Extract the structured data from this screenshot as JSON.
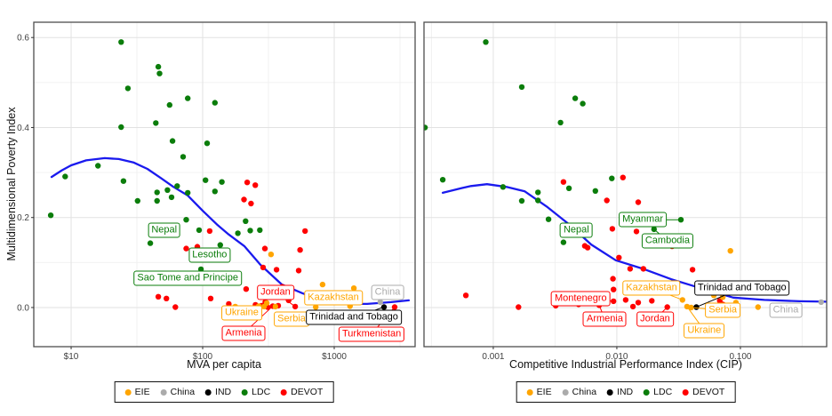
{
  "y_axis_title": "Multidimensional Poverty Index",
  "colors": {
    "EIE": "#FFA500",
    "China": "#ABABAB",
    "IND": "#000000",
    "LDC": "#0B7D0B",
    "DEVOT": "#FF0000",
    "trend": "#1A1AEE",
    "grid_major": "#E2E2E2",
    "grid_minor": "#F0F0F0",
    "panel_border": "#4D4D4D",
    "tick_text": "#404040"
  },
  "legend_items": [
    {
      "key": "EIE",
      "label": "EIE"
    },
    {
      "key": "China",
      "label": "China"
    },
    {
      "key": "IND",
      "label": "IND"
    },
    {
      "key": "LDC",
      "label": "LDC"
    },
    {
      "key": "DEVOT",
      "label": "DEVOT"
    }
  ],
  "chart_data": [
    {
      "type": "scatter",
      "xlabel": "MVA per capita",
      "ylabel": "Multidimensional Poverty Index",
      "x_scale": "log10",
      "grid": true,
      "legend_position": "bottom",
      "x_range": [
        5.2,
        4120
      ],
      "y_range": [
        -0.087,
        0.634
      ],
      "x_ticks": [
        {
          "v": 10,
          "label": "$10"
        },
        {
          "v": 100,
          "label": "$100"
        },
        {
          "v": 1000,
          "label": "$1000"
        }
      ],
      "x_minor": [
        31.6,
        316,
        3162
      ],
      "y_ticks": [
        {
          "v": 0.0,
          "label": "0.0"
        },
        {
          "v": 0.2,
          "label": "0.2"
        },
        {
          "v": 0.4,
          "label": "0.4"
        },
        {
          "v": 0.6,
          "label": "0.6"
        }
      ],
      "y_minor": [
        0.1,
        0.3,
        0.5
      ],
      "show_y_labels": true,
      "series": [
        {
          "name": "LDC",
          "points": [
            [
              24,
              0.59
            ],
            [
              46,
              0.535
            ],
            [
              47,
              0.52
            ],
            [
              27,
              0.487
            ],
            [
              77,
              0.465
            ],
            [
              56,
              0.45
            ],
            [
              124,
              0.455
            ],
            [
              44,
              0.41
            ],
            [
              24,
              0.401
            ],
            [
              59,
              0.37
            ],
            [
              108,
              0.365
            ],
            [
              71,
              0.335
            ],
            [
              16,
              0.315
            ],
            [
              9,
              0.291
            ],
            [
              25,
              0.281
            ],
            [
              105,
              0.283
            ],
            [
              140,
              0.279
            ],
            [
              45,
              0.256
            ],
            [
              54,
              0.261
            ],
            [
              64,
              0.27
            ],
            [
              77,
              0.255
            ],
            [
              32,
              0.237
            ],
            [
              45,
              0.237
            ],
            [
              58,
              0.245
            ],
            [
              124,
              0.258
            ],
            [
              7,
              0.205
            ],
            [
              75,
              0.195
            ],
            [
              94,
              0.172
            ],
            [
              40,
              0.143
            ],
            [
              136,
              0.139
            ],
            [
              185,
              0.165
            ],
            [
              230,
              0.171
            ],
            [
              272,
              0.172
            ],
            [
              212,
              0.192
            ],
            [
              97,
              0.085
            ]
          ]
        },
        {
          "name": "DEVOT",
          "points": [
            [
              218,
              0.278
            ],
            [
              251,
              0.272
            ],
            [
              206,
              0.24
            ],
            [
              233,
              0.231
            ],
            [
              600,
              0.17
            ],
            [
              113,
              0.17
            ],
            [
              550,
              0.128
            ],
            [
              75,
              0.131
            ],
            [
              91,
              0.135
            ],
            [
              297,
              0.131
            ],
            [
              288,
              0.089
            ],
            [
              364,
              0.084
            ],
            [
              537,
              0.082
            ],
            [
              403,
              0.046
            ],
            [
              214,
              0.041
            ],
            [
              307,
              0.032
            ],
            [
              46,
              0.024
            ],
            [
              53,
              0.02
            ],
            [
              62,
              0.001
            ],
            [
              115,
              0.02
            ],
            [
              158,
              0.008
            ],
            [
              252,
              0.006
            ],
            [
              280,
              0.004
            ],
            [
              299,
              0.012
            ],
            [
              312,
              0.001
            ],
            [
              341,
              0.003
            ],
            [
              375,
              0.004
            ],
            [
              450,
              0.016
            ],
            [
              505,
              0.002
            ],
            [
              2880,
              0.001
            ]
          ]
        },
        {
          "name": "EIE",
          "points": [
            [
              331,
              0.118
            ],
            [
              816,
              0.051
            ],
            [
              177,
              0.002
            ],
            [
              267,
              0.003
            ],
            [
              293,
              0.002
            ],
            [
              307,
              0.01
            ],
            [
              357,
              0.002
            ],
            [
              724,
              0.001
            ],
            [
              1410,
              0.043
            ],
            [
              1320,
              0.003
            ]
          ]
        },
        {
          "name": "China",
          "points": [
            [
              2240,
              0.012
            ]
          ]
        },
        {
          "name": "IND",
          "points": [
            [
              2390,
              0.001
            ]
          ]
        }
      ],
      "trend": [
        [
          7.1,
          0.29
        ],
        [
          8.5,
          0.305
        ],
        [
          10,
          0.316
        ],
        [
          13,
          0.327
        ],
        [
          18,
          0.332
        ],
        [
          23,
          0.33
        ],
        [
          30,
          0.322
        ],
        [
          38,
          0.308
        ],
        [
          48,
          0.288
        ],
        [
          60,
          0.268
        ],
        [
          77,
          0.249
        ],
        [
          100,
          0.215
        ],
        [
          130,
          0.183
        ],
        [
          155,
          0.164
        ],
        [
          208,
          0.136
        ],
        [
          275,
          0.095
        ],
        [
          400,
          0.051
        ],
        [
          571,
          0.032
        ],
        [
          870,
          0.012
        ],
        [
          1245,
          0.008
        ],
        [
          1780,
          0.008
        ],
        [
          2705,
          0.012
        ],
        [
          3690,
          0.016
        ]
      ],
      "annotations": [
        {
          "text": "Nepal",
          "group": "LDC",
          "at": [
            51,
            0.172
          ]
        },
        {
          "text": "Lesotho",
          "group": "LDC",
          "at": [
            113,
            0.116
          ]
        },
        {
          "text": "Sao Tome and Principe",
          "group": "LDC",
          "at": [
            77,
            0.065
          ]
        },
        {
          "text": "Ukraine",
          "group": "EIE",
          "at": [
            198,
            -0.012
          ]
        },
        {
          "text": "Serbia",
          "group": "EIE",
          "at": [
            474,
            -0.026
          ]
        },
        {
          "text": "Jordan",
          "group": "DEVOT",
          "at": [
            358,
            0.034
          ],
          "leader": [
            505,
            0.002
          ]
        },
        {
          "text": "Kazakhstan",
          "group": "EIE",
          "at": [
            985,
            0.022
          ]
        },
        {
          "text": "Armenia",
          "group": "DEVOT",
          "at": [
            205,
            -0.057
          ],
          "leader": [
            341,
            0.003
          ]
        },
        {
          "text": "China",
          "group": "China",
          "at": [
            2545,
            0.034
          ]
        },
        {
          "text": "Trinidad and Tobago",
          "group": "IND",
          "at": [
            1410,
            -0.022
          ],
          "leader": [
            2390,
            0.001
          ]
        },
        {
          "text": "Turkmenistan",
          "group": "DEVOT",
          "at": [
            1925,
            -0.059
          ],
          "leader": [
            2880,
            0.001
          ]
        }
      ]
    },
    {
      "type": "scatter",
      "xlabel": "Competitive Industrial Performance Index (CIP)",
      "ylabel": "Multidimensional Poverty Index",
      "x_scale": "log10",
      "grid": true,
      "legend_position": "bottom",
      "x_range": [
        0.000275,
        0.499
      ],
      "y_range": [
        -0.087,
        0.634
      ],
      "x_ticks": [
        {
          "v": 0.001,
          "label": "0.001"
        },
        {
          "v": 0.01,
          "label": "0.010"
        },
        {
          "v": 0.1,
          "label": "0.100"
        }
      ],
      "x_minor": [
        0.000316,
        0.00316,
        0.0316,
        0.316
      ],
      "y_ticks": [
        {
          "v": 0.0,
          "label": ""
        },
        {
          "v": 0.2,
          "label": ""
        },
        {
          "v": 0.4,
          "label": ""
        },
        {
          "v": 0.6,
          "label": ""
        }
      ],
      "y_minor": [
        0.1,
        0.3,
        0.5
      ],
      "show_y_labels": false,
      "series": [
        {
          "name": "LDC",
          "points": [
            [
              0.00087,
              0.59
            ],
            [
              0.0017,
              0.49
            ],
            [
              0.0046,
              0.465
            ],
            [
              0.0053,
              0.453
            ],
            [
              0.0035,
              0.411
            ],
            [
              0.00028,
              0.4
            ],
            [
              0.00039,
              0.284
            ],
            [
              0.0012,
              0.268
            ],
            [
              0.0017,
              0.237
            ],
            [
              0.0023,
              0.256
            ],
            [
              0.0023,
              0.238
            ],
            [
              0.0041,
              0.265
            ],
            [
              0.0067,
              0.259
            ],
            [
              0.0091,
              0.287
            ],
            [
              0.0028,
              0.196
            ],
            [
              0.0037,
              0.145
            ],
            [
              0.02,
              0.174
            ],
            [
              0.033,
              0.195
            ]
          ]
        },
        {
          "name": "DEVOT",
          "points": [
            [
              0.0037,
              0.279
            ],
            [
              0.0112,
              0.289
            ],
            [
              0.0083,
              0.238
            ],
            [
              0.0149,
              0.234
            ],
            [
              0.0055,
              0.137
            ],
            [
              0.0058,
              0.133
            ],
            [
              0.028,
              0.136
            ],
            [
              0.0144,
              0.169
            ],
            [
              0.0092,
              0.175
            ],
            [
              0.0104,
              0.111
            ],
            [
              0.0128,
              0.086
            ],
            [
              0.0164,
              0.086
            ],
            [
              0.0093,
              0.064
            ],
            [
              0.041,
              0.084
            ],
            [
              0.0094,
              0.04
            ],
            [
              0.0094,
              0.014
            ],
            [
              0.0118,
              0.017
            ],
            [
              0.0135,
              0.002
            ],
            [
              0.0149,
              0.011
            ],
            [
              0.0192,
              0.015
            ],
            [
              0.0256,
              0.001
            ],
            [
              0.0058,
              0.015
            ],
            [
              0.0049,
              0.007
            ],
            [
              0.0072,
              0.005
            ],
            [
              0.0006,
              0.027
            ],
            [
              0.0016,
              0.001
            ],
            [
              0.0032,
              0.004
            ],
            [
              0.068,
              0.015
            ],
            [
              0.072,
              0.007
            ]
          ]
        },
        {
          "name": "EIE",
          "points": [
            [
              0.083,
              0.126
            ],
            [
              0.034,
              0.017
            ],
            [
              0.037,
              0.002
            ],
            [
              0.04,
              0.0
            ],
            [
              0.061,
              0.027
            ],
            [
              0.072,
              0.023
            ],
            [
              0.092,
              0.011
            ],
            [
              0.139,
              0.001
            ]
          ]
        },
        {
          "name": "China",
          "points": [
            [
              0.45,
              0.012
            ]
          ]
        },
        {
          "name": "IND",
          "points": [
            [
              0.044,
              0.001
            ]
          ]
        }
      ],
      "trend": [
        [
          0.00039,
          0.255
        ],
        [
          0.00055,
          0.265
        ],
        [
          0.00066,
          0.27
        ],
        [
          0.00089,
          0.274
        ],
        [
          0.00128,
          0.268
        ],
        [
          0.0018,
          0.258
        ],
        [
          0.00275,
          0.223
        ],
        [
          0.0041,
          0.185
        ],
        [
          0.0062,
          0.14
        ],
        [
          0.0098,
          0.105
        ],
        [
          0.0167,
          0.085
        ],
        [
          0.0275,
          0.063
        ],
        [
          0.049,
          0.042
        ],
        [
          0.0875,
          0.022
        ],
        [
          0.156,
          0.017
        ],
        [
          0.3,
          0.014
        ],
        [
          0.49,
          0.013
        ]
      ],
      "annotations": [
        {
          "text": "Myanmar",
          "group": "LDC",
          "at": [
            0.0162,
            0.195
          ],
          "leader": [
            0.033,
            0.195
          ]
        },
        {
          "text": "Nepal",
          "group": "LDC",
          "at": [
            0.0047,
            0.172
          ]
        },
        {
          "text": "Cambodia",
          "group": "LDC",
          "at": [
            0.0257,
            0.148
          ],
          "leader": [
            0.02,
            0.174
          ]
        },
        {
          "text": "Kazakhstan",
          "group": "EIE",
          "at": [
            0.0191,
            0.043
          ],
          "leader": [
            0.034,
            0.017
          ]
        },
        {
          "text": "Montenegro",
          "group": "DEVOT",
          "at": [
            0.0051,
            0.02
          ],
          "leader": [
            0.0094,
            0.014
          ]
        },
        {
          "text": "Armenia",
          "group": "DEVOT",
          "at": [
            0.008,
            -0.026
          ],
          "leader": [
            0.0072,
            0.005
          ]
        },
        {
          "text": "Jordan",
          "group": "DEVOT",
          "at": [
            0.0204,
            -0.026
          ],
          "leader": [
            0.0256,
            0.001
          ]
        },
        {
          "text": "Serbia",
          "group": "EIE",
          "at": [
            0.072,
            -0.006
          ],
          "leader": [
            0.04,
            0.0
          ]
        },
        {
          "text": "Ukraine",
          "group": "EIE",
          "at": [
            0.051,
            -0.051
          ],
          "leader": [
            0.037,
            0.002
          ]
        },
        {
          "text": "Trinidad and Tobago",
          "group": "IND",
          "at": [
            0.103,
            0.043
          ],
          "leader": [
            0.044,
            0.001
          ]
        },
        {
          "text": "China",
          "group": "China",
          "at": [
            0.233,
            -0.006
          ]
        }
      ]
    }
  ]
}
